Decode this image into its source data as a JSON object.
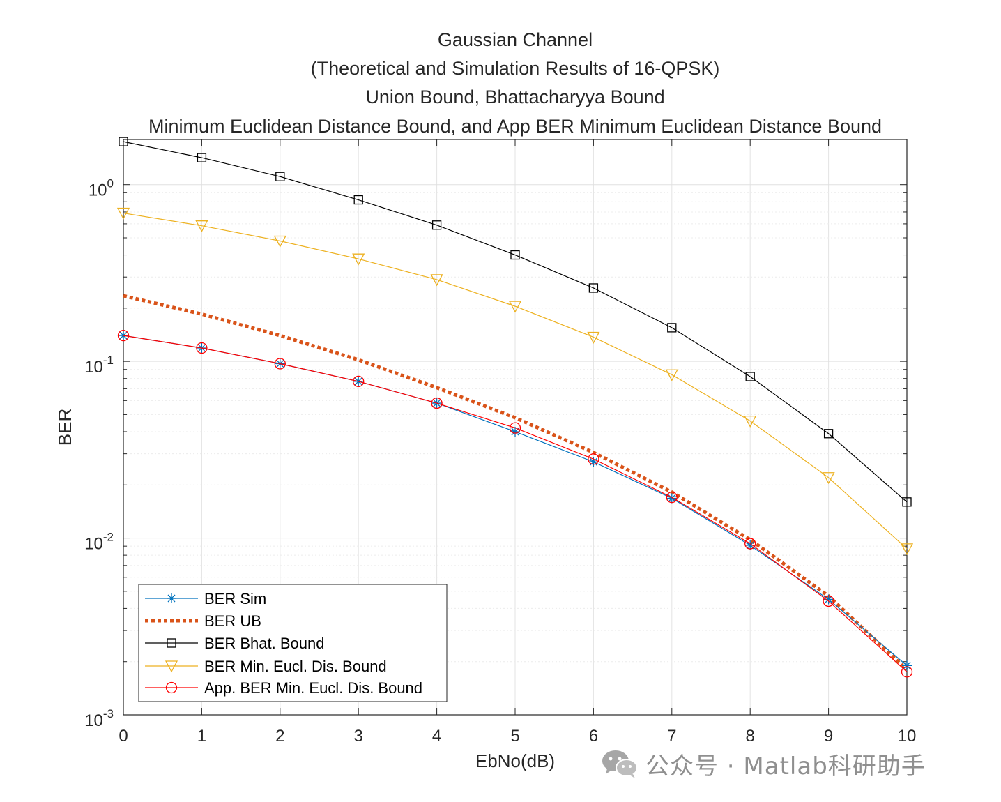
{
  "chart_data": {
    "type": "line",
    "title": [
      "Gaussian Channel",
      "(Theoretical and Simulation Results of 16-QPSK)",
      "Union Bound, Bhattacharyya Bound",
      "Minimum Euclidean Distance Bound, and App BER Minimum Euclidean Distance Bound"
    ],
    "xlabel": "EbNo(dB)",
    "ylabel": "BER",
    "x": [
      0,
      1,
      2,
      3,
      4,
      5,
      6,
      7,
      8,
      9,
      10
    ],
    "xlim": [
      0,
      10
    ],
    "ylim": [
      0.001,
      1.8
    ],
    "yscale": "log",
    "grid": true,
    "legend_position": "bottom-left",
    "x_tick_labels": [
      "0",
      "1",
      "2",
      "3",
      "4",
      "5",
      "6",
      "7",
      "8",
      "9",
      "10"
    ],
    "y_ticks": [
      {
        "value": 1,
        "base": "10",
        "exp": "0"
      },
      {
        "value": 0.1,
        "base": "10",
        "exp": "-1"
      },
      {
        "value": 0.01,
        "base": "10",
        "exp": "-2"
      },
      {
        "value": 0.001,
        "base": "10",
        "exp": "-3"
      }
    ],
    "series": [
      {
        "name": "BER Sim",
        "color": "#0072BD",
        "marker": "asterisk",
        "line": "solid",
        "values": [
          0.14,
          0.119,
          0.097,
          0.077,
          0.058,
          0.04,
          0.027,
          0.0168,
          0.0091,
          0.0045,
          0.0019
        ]
      },
      {
        "name": "BER UB",
        "color": "#D95319",
        "marker": "none",
        "line": "dotted",
        "values": [
          0.235,
          0.185,
          0.14,
          0.102,
          0.071,
          0.048,
          0.0305,
          0.0182,
          0.0098,
          0.0047,
          0.0018
        ]
      },
      {
        "name": "BER Bhat. Bound",
        "color": "#000000",
        "marker": "square",
        "line": "solid",
        "values": [
          1.75,
          1.42,
          1.11,
          0.82,
          0.59,
          0.4,
          0.26,
          0.155,
          0.082,
          0.039,
          0.016
        ]
      },
      {
        "name": "BER Min. Eucl. Dis. Bound",
        "color": "#EDB120",
        "marker": "triangle-down",
        "line": "solid",
        "values": [
          0.69,
          0.585,
          0.48,
          0.38,
          0.29,
          0.205,
          0.137,
          0.084,
          0.046,
          0.022,
          0.0087
        ]
      },
      {
        "name": "App. BER Min. Eucl. Dis. Bound",
        "color": "#FF0000",
        "marker": "circle",
        "line": "solid",
        "values": [
          0.14,
          0.119,
          0.097,
          0.077,
          0.058,
          0.042,
          0.028,
          0.017,
          0.0093,
          0.0044,
          0.00175
        ]
      }
    ]
  },
  "watermark": {
    "text": "公众号 · Matlab科研助手",
    "icon": "wechat-icon"
  }
}
